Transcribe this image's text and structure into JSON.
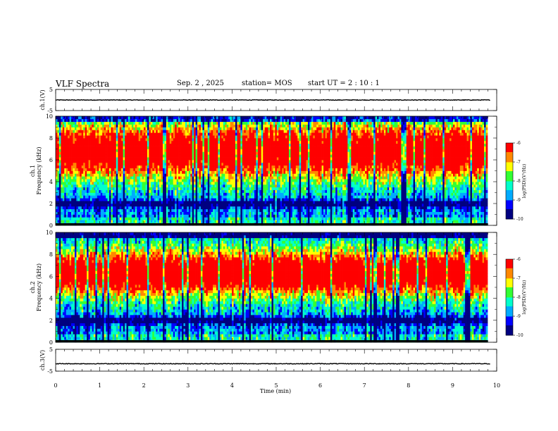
{
  "header": {
    "title": "VLF Spectra",
    "date": "Sep. 2 , 2025",
    "station": "station= MOS",
    "start": "start UT =   2 : 10 : 1"
  },
  "colors": {
    "scale": [
      "#000080",
      "#0000ff",
      "#00aaff",
      "#00ffcc",
      "#33ff33",
      "#ffff00",
      "#ff8800",
      "#ff0000",
      "#ffffff"
    ],
    "axis": "#000000",
    "trace": "#000000"
  },
  "chart_data": [
    {
      "type": "line",
      "id": "ch1-voltage",
      "ylabel": "ch.1(V)",
      "ylim": [
        -5,
        5
      ],
      "yticks": [
        "5",
        "-5"
      ],
      "xlim": [
        0,
        10
      ],
      "series": [
        {
          "name": "ch.1 voltage",
          "baseline": 0,
          "noise_amplitude": 0.3
        }
      ]
    },
    {
      "type": "heatmap",
      "id": "ch1-spectrogram",
      "ylabel": "ch.1\nFrequency (kHz)",
      "ylim": [
        0,
        10
      ],
      "yticks": [
        "0",
        "2",
        "4",
        "6",
        "8",
        "10"
      ],
      "xlim": [
        0,
        9.85
      ],
      "band_center_khz": 6.8,
      "band_width_khz": 2.6,
      "low_band_khz": 2.0,
      "colorbar": {
        "label": "log(PSD)(V²/Hz)",
        "ticks": [
          "-6",
          "-7",
          "-8",
          "-9",
          "-10"
        ],
        "range": [
          -10,
          -6
        ]
      }
    },
    {
      "type": "heatmap",
      "id": "ch2-spectrogram",
      "ylabel": "ch.2\nFrequency (kHz)",
      "ylim": [
        0,
        10
      ],
      "yticks": [
        "0",
        "2",
        "4",
        "6",
        "8",
        "10"
      ],
      "xlim": [
        0,
        9.85
      ],
      "band_center_khz": 6.3,
      "band_width_khz": 2.2,
      "low_band_khz": 2.0,
      "colorbar": {
        "label": "log(PSD)(V²/Hz)",
        "ticks": [
          "-6",
          "-7",
          "-8",
          "-9",
          "-10"
        ],
        "range": [
          -10,
          -6
        ]
      }
    },
    {
      "type": "line",
      "id": "ch3-voltage",
      "ylabel": "ch.3(V)",
      "ylim": [
        -5,
        5
      ],
      "yticks": [
        "5",
        "-5"
      ],
      "xlim": [
        0,
        10
      ],
      "series": [
        {
          "name": "ch.3 voltage",
          "baseline": -1.6,
          "noise_amplitude": 0.3
        }
      ]
    }
  ],
  "xaxis": {
    "label": "Time (min)",
    "ticks": [
      "0",
      "1",
      "2",
      "3",
      "4",
      "5",
      "6",
      "7",
      "8",
      "9",
      "10"
    ],
    "range": [
      0,
      10
    ]
  }
}
